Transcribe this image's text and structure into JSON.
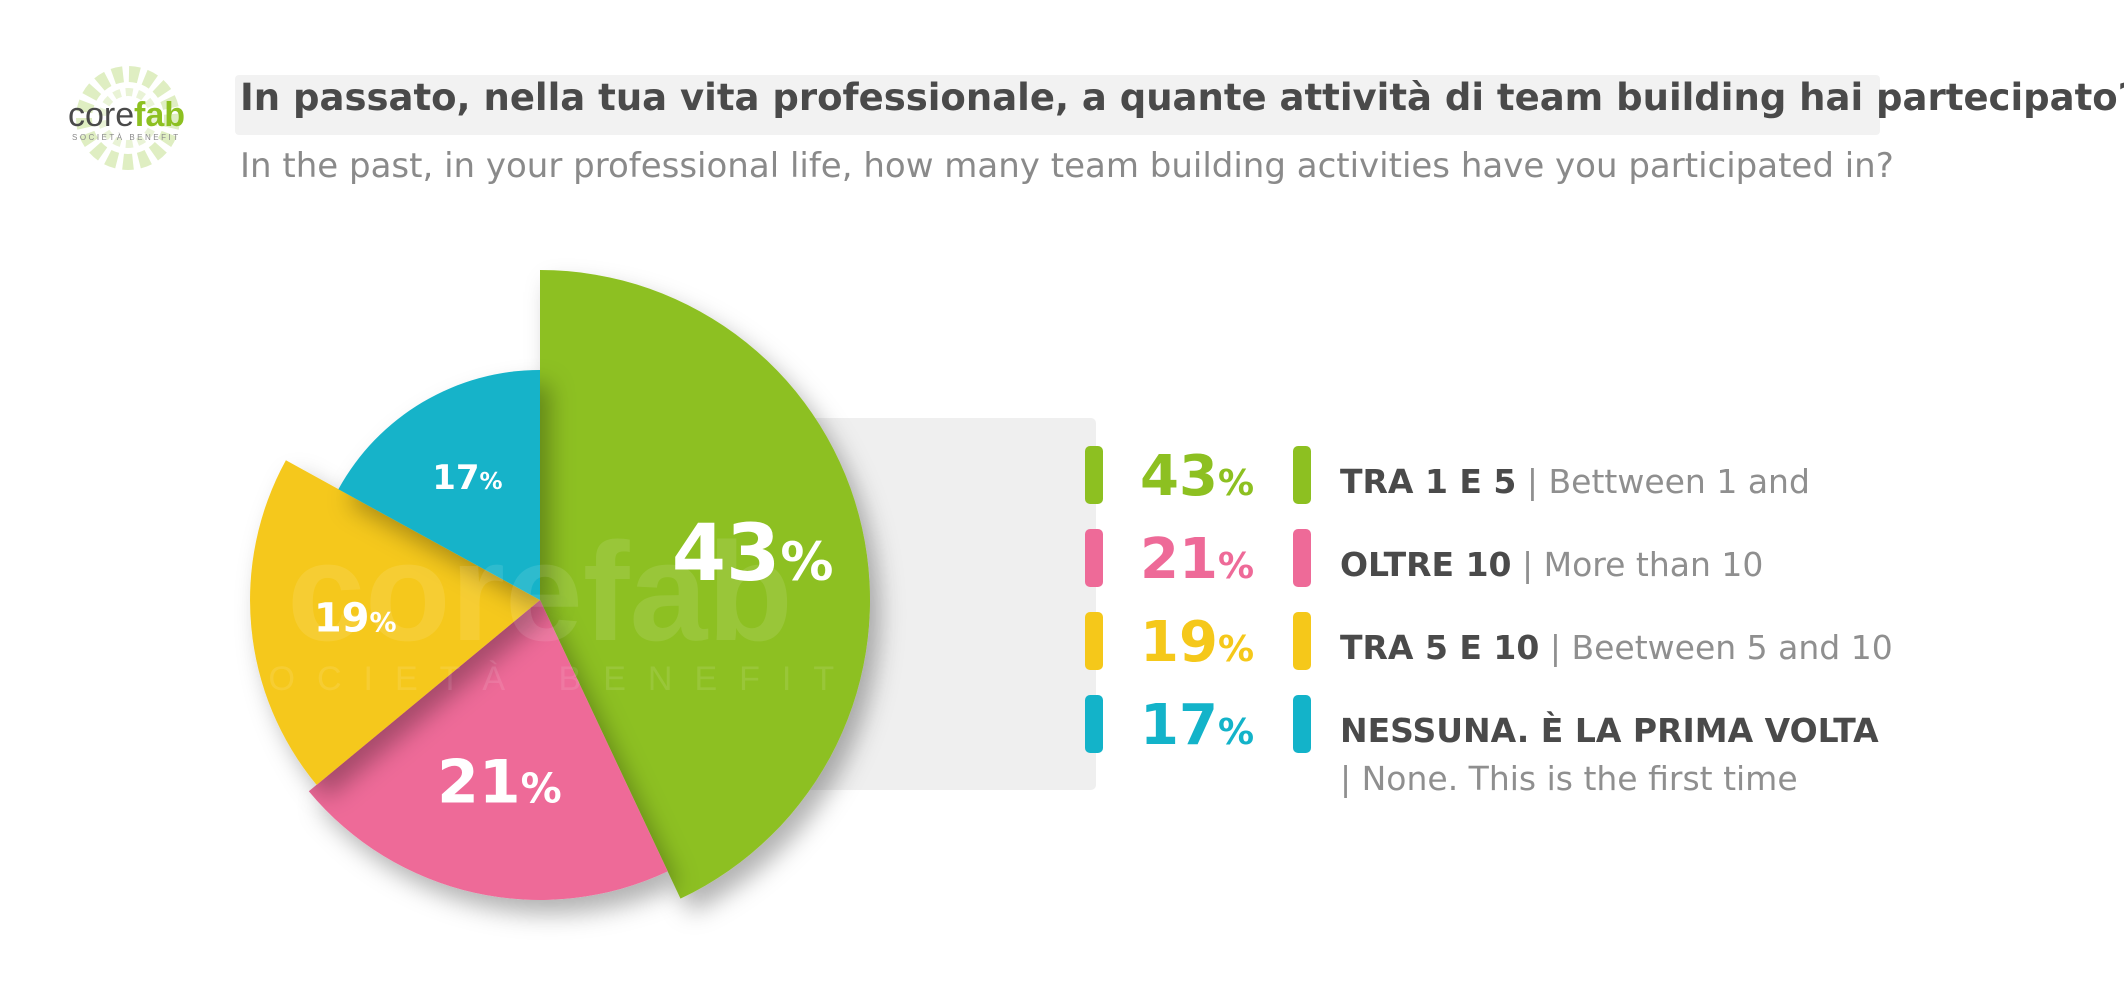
{
  "logo": {
    "text_core": "core",
    "text_fab": "fab",
    "tagline": "SOCIETÀ BENEFIT",
    "icon": "gear-icon"
  },
  "watermark": {
    "text": "corefab",
    "tagline": "SOCIETÀ BENEFIT"
  },
  "title": "In passato, nella tua vita professionale, a quante attività di team building hai partecipato?",
  "subtitle": "In the past, in your professional life, how many team building activities have you participated in?",
  "colors": {
    "green": "#8dc021",
    "pink": "#ee6a98",
    "yellow": "#f5c81a",
    "cyan": "#13b3c9",
    "title": "#4a4a4a",
    "subtitle": "#8a8a8a"
  },
  "chart_data": {
    "type": "pie",
    "title": "In passato, nella tua vita professionale, a quante attività di team building hai partecipato?",
    "subtitle": "In the past, in your professional life, how many team building activities have you participated in?",
    "legend_position": "right",
    "slices": [
      {
        "label": "TRA 1 E 5",
        "label_en": "| Bettween 1 and",
        "value": 43,
        "display": "43",
        "color": "#8dc021"
      },
      {
        "label": "OLTRE 10",
        "label_en": "| More than 10",
        "value": 21,
        "display": "21",
        "color": "#ee6a98"
      },
      {
        "label": "TRA 5 E 10",
        "label_en": "| Beetween 5 and 10",
        "value": 19,
        "display": "19",
        "color": "#f5c81a"
      },
      {
        "label": "NESSUNA. È LA PRIMA VOLTA",
        "label_en": "| None. This is the first time",
        "value": 17,
        "display": "17",
        "color": "#13b3c9"
      }
    ],
    "percent_sign": "%"
  }
}
